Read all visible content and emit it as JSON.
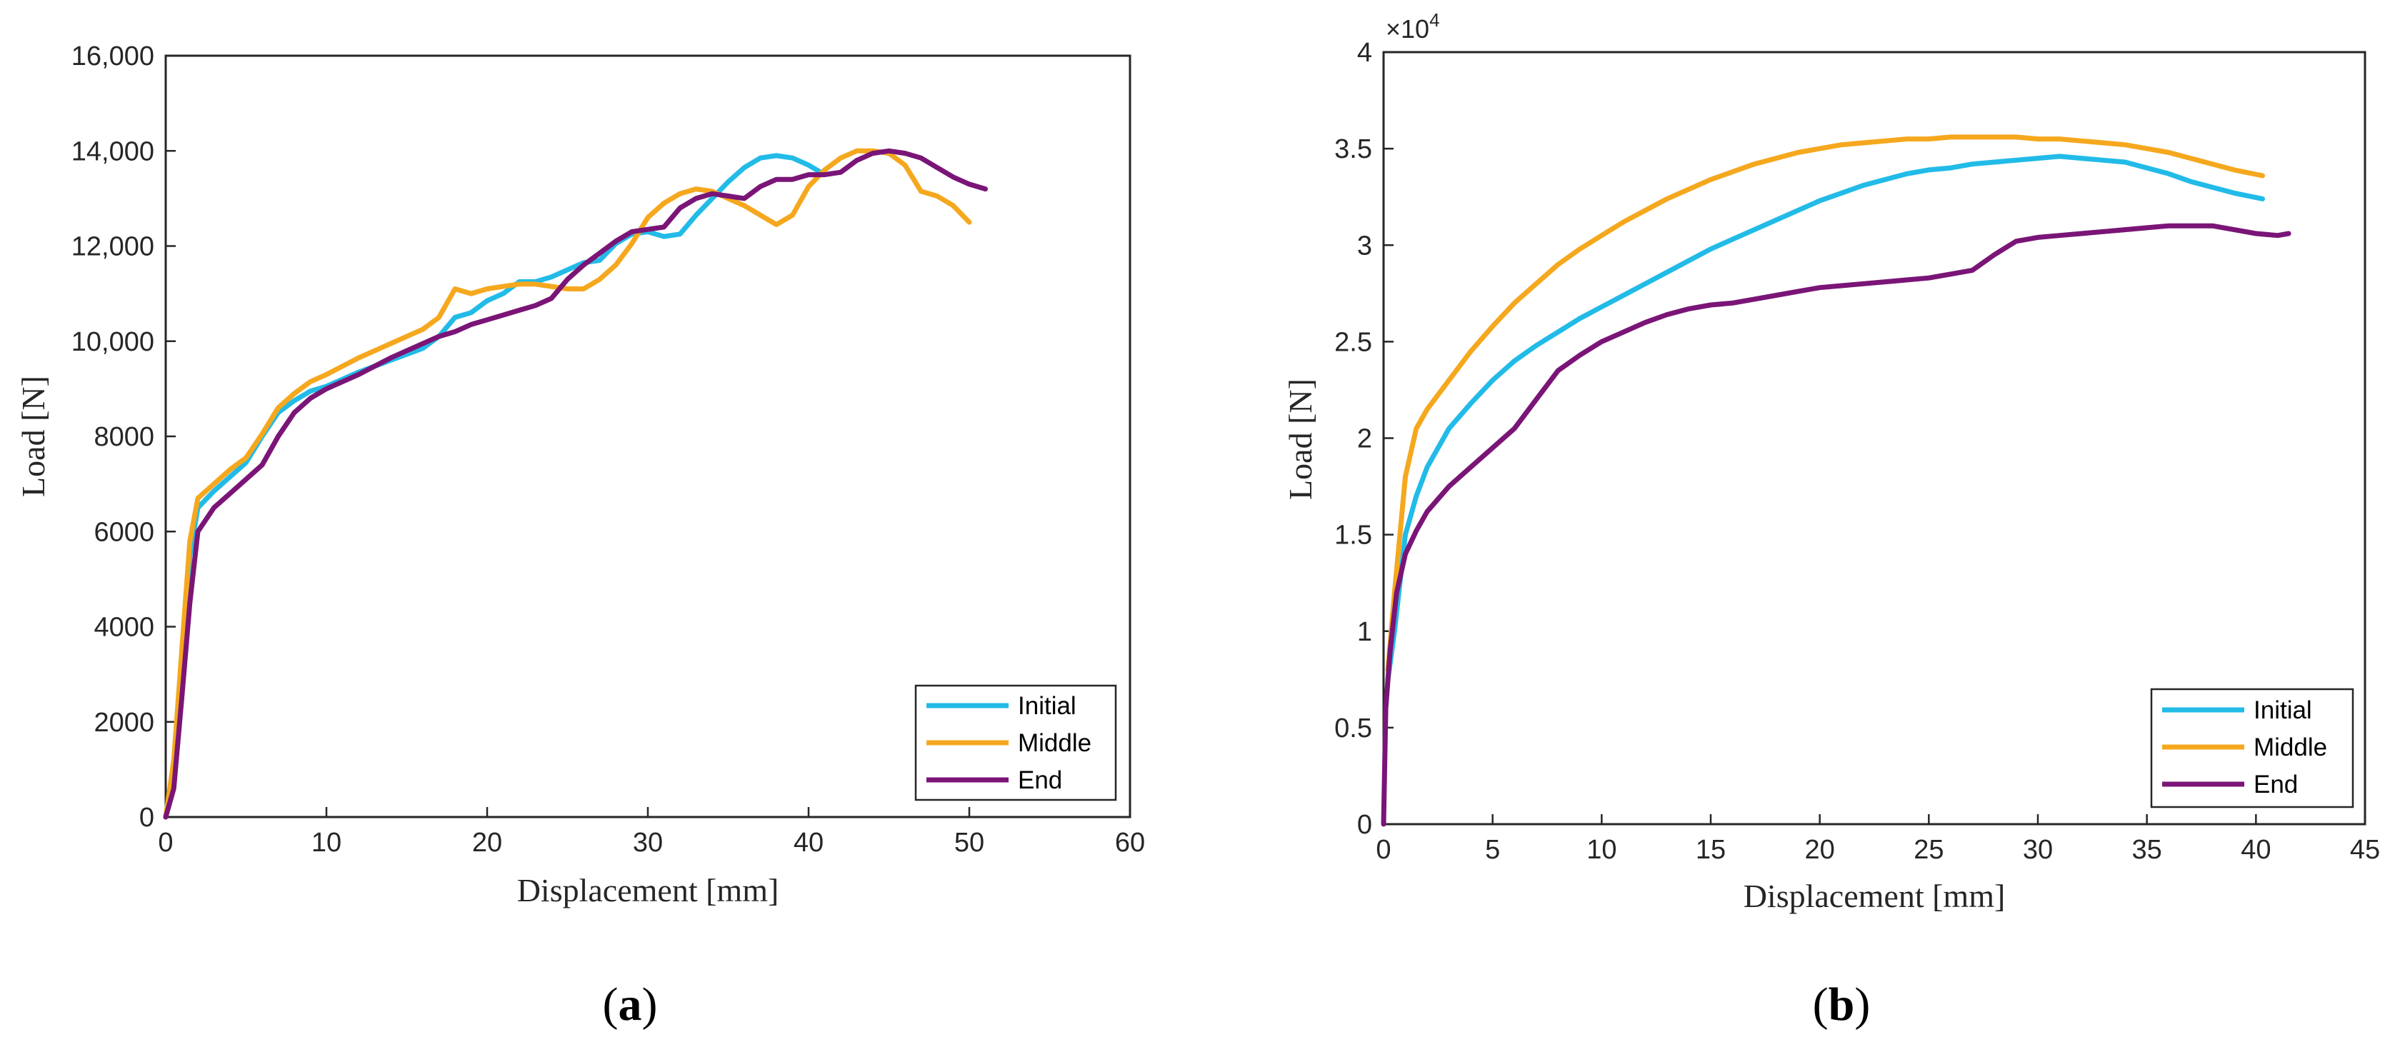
{
  "colors": {
    "initial": "#22bbe8",
    "middle": "#f5a81e",
    "end": "#7a1577",
    "axis": "#262626"
  },
  "chart_data": [
    {
      "type": "line",
      "panel_label": "a",
      "caption": {
        "open": "(",
        "letter": "a",
        "close": ")"
      },
      "title": "",
      "xlabel": "Displacement [mm]",
      "ylabel": "Load [N]",
      "xlim": [
        0,
        60
      ],
      "ylim": [
        0,
        16000
      ],
      "xticks": [
        0,
        10,
        20,
        30,
        40,
        50,
        60
      ],
      "yticks": [
        0,
        2000,
        4000,
        6000,
        8000,
        10000,
        12000,
        14000,
        16000
      ],
      "ytick_labels": [
        "0",
        "2000",
        "4000",
        "6000",
        "8000",
        "10,000",
        "12,000",
        "14,000",
        "16,000"
      ],
      "grid": false,
      "legend": "bottom-right",
      "series": [
        {
          "name": "Initial",
          "color_key": "initial",
          "x": [
            0,
            0.5,
            1.0,
            1.5,
            2.0,
            3,
            4,
            5,
            6,
            7,
            8,
            9,
            10,
            12,
            14,
            16,
            17,
            18,
            19,
            20,
            21,
            22,
            23,
            24,
            25,
            26,
            27,
            28,
            29,
            30,
            31,
            32,
            33,
            34,
            35,
            36,
            37,
            38,
            39,
            40,
            41
          ],
          "y": [
            0,
            1000,
            3200,
            5500,
            6500,
            6850,
            7150,
            7450,
            8000,
            8500,
            8750,
            8950,
            9050,
            9350,
            9600,
            9850,
            10100,
            10500,
            10600,
            10850,
            11000,
            11250,
            11250,
            11350,
            11500,
            11650,
            11700,
            12050,
            12250,
            12300,
            12200,
            12250,
            12650,
            13000,
            13350,
            13650,
            13850,
            13900,
            13850,
            13700,
            13500
          ]
        },
        {
          "name": "Middle",
          "color_key": "middle",
          "x": [
            0,
            0.5,
            1.0,
            1.5,
            2.0,
            3,
            4,
            5,
            6,
            7,
            8,
            9,
            10,
            12,
            14,
            16,
            17,
            18,
            19,
            20,
            21,
            22,
            23,
            24,
            25,
            26,
            27,
            28,
            29,
            30,
            31,
            32,
            33,
            34,
            35,
            36,
            37,
            38,
            39,
            40,
            41,
            42,
            43,
            44,
            45,
            46,
            47,
            48,
            49,
            50
          ],
          "y": [
            0,
            1200,
            3500,
            5800,
            6700,
            7000,
            7300,
            7550,
            8050,
            8600,
            8900,
            9150,
            9300,
            9650,
            9950,
            10250,
            10500,
            11100,
            11000,
            11100,
            11150,
            11200,
            11200,
            11150,
            11100,
            11100,
            11300,
            11600,
            12050,
            12600,
            12900,
            13100,
            13200,
            13150,
            13000,
            12850,
            12650,
            12450,
            12650,
            13250,
            13600,
            13850,
            14000,
            14000,
            13950,
            13700,
            13150,
            13050,
            12850,
            12500
          ]
        },
        {
          "name": "End",
          "color_key": "end",
          "x": [
            0,
            0.5,
            1.0,
            1.5,
            2.0,
            3,
            4,
            5,
            6,
            7,
            8,
            9,
            10,
            12,
            14,
            16,
            17,
            18,
            19,
            20,
            21,
            22,
            23,
            24,
            25,
            26,
            27,
            28,
            29,
            30,
            31,
            32,
            33,
            34,
            35,
            36,
            37,
            38,
            39,
            40,
            41,
            42,
            43,
            44,
            45,
            46,
            47,
            48,
            49,
            50,
            51
          ],
          "y": [
            0,
            600,
            2500,
            4500,
            6000,
            6500,
            6800,
            7100,
            7400,
            8000,
            8500,
            8800,
            9000,
            9300,
            9650,
            9950,
            10100,
            10200,
            10350,
            10450,
            10550,
            10650,
            10750,
            10900,
            11300,
            11600,
            11850,
            12100,
            12300,
            12350,
            12400,
            12800,
            13000,
            13100,
            13050,
            13000,
            13250,
            13400,
            13400,
            13500,
            13500,
            13550,
            13800,
            13950,
            14000,
            13950,
            13850,
            13650,
            13450,
            13300,
            13200
          ]
        }
      ]
    },
    {
      "type": "line",
      "panel_label": "b",
      "caption": {
        "open": "(",
        "letter": "b",
        "close": ")"
      },
      "title": "",
      "xlabel": "Displacement [mm]",
      "ylabel": "Load [N]",
      "xlim": [
        0,
        45
      ],
      "ylim": [
        0,
        4
      ],
      "y_multiplier": {
        "base": "×10",
        "exponent": "4"
      },
      "xticks": [
        0,
        5,
        10,
        15,
        20,
        25,
        30,
        35,
        40,
        45
      ],
      "yticks": [
        0,
        0.5,
        1,
        1.5,
        2,
        2.5,
        3,
        3.5,
        4
      ],
      "ytick_labels": [
        "0",
        "0.5",
        "1",
        "1.5",
        "2",
        "2.5",
        "3",
        "3.5",
        "4"
      ],
      "grid": false,
      "legend": "bottom-right",
      "series": [
        {
          "name": "Initial",
          "color_key": "initial",
          "x": [
            0.2,
            0.5,
            1,
            1.5,
            2,
            3,
            4,
            5,
            6,
            7,
            8,
            9,
            10,
            11,
            12,
            13,
            14,
            15,
            16,
            17,
            18,
            19,
            20,
            21,
            22,
            23,
            24,
            25,
            26,
            27,
            28,
            29,
            30,
            31,
            32,
            33,
            34,
            35,
            36,
            37,
            38,
            39,
            40.3
          ],
          "y": [
            0.75,
            1.0,
            1.5,
            1.7,
            1.85,
            2.05,
            2.18,
            2.3,
            2.4,
            2.48,
            2.55,
            2.62,
            2.68,
            2.74,
            2.8,
            2.86,
            2.92,
            2.98,
            3.03,
            3.08,
            3.13,
            3.18,
            3.23,
            3.27,
            3.31,
            3.34,
            3.37,
            3.39,
            3.4,
            3.42,
            3.43,
            3.44,
            3.45,
            3.46,
            3.45,
            3.44,
            3.43,
            3.4,
            3.37,
            3.33,
            3.3,
            3.27,
            3.24
          ]
        },
        {
          "name": "Middle",
          "color_key": "middle",
          "x": [
            0.2,
            0.5,
            1,
            1.5,
            2,
            3,
            4,
            5,
            6,
            7,
            8,
            9,
            10,
            11,
            12,
            13,
            14,
            15,
            16,
            17,
            18,
            19,
            20,
            21,
            22,
            23,
            24,
            25,
            26,
            27,
            28,
            29,
            30,
            31,
            32,
            33,
            34,
            35,
            36,
            37,
            38,
            39,
            40.3
          ],
          "y": [
            0.8,
            1.2,
            1.8,
            2.05,
            2.15,
            2.3,
            2.45,
            2.58,
            2.7,
            2.8,
            2.9,
            2.98,
            3.05,
            3.12,
            3.18,
            3.24,
            3.29,
            3.34,
            3.38,
            3.42,
            3.45,
            3.48,
            3.5,
            3.52,
            3.53,
            3.54,
            3.55,
            3.55,
            3.56,
            3.56,
            3.56,
            3.56,
            3.55,
            3.55,
            3.54,
            3.53,
            3.52,
            3.5,
            3.48,
            3.45,
            3.42,
            3.39,
            3.36
          ]
        },
        {
          "name": "End",
          "color_key": "end",
          "x": [
            0,
            0.1,
            0.3,
            0.6,
            1,
            1.5,
            2,
            3,
            4,
            5,
            6,
            7,
            8,
            9,
            10,
            11,
            12,
            13,
            14,
            15,
            16,
            17,
            18,
            19,
            20,
            21,
            22,
            23,
            24,
            25,
            26,
            27,
            28,
            29,
            30,
            31,
            32,
            33,
            34,
            35,
            36,
            37,
            38,
            39,
            40,
            41,
            41.5
          ],
          "y": [
            0,
            0.6,
            0.9,
            1.2,
            1.4,
            1.52,
            1.62,
            1.75,
            1.85,
            1.95,
            2.05,
            2.2,
            2.35,
            2.43,
            2.5,
            2.55,
            2.6,
            2.64,
            2.67,
            2.69,
            2.7,
            2.72,
            2.74,
            2.76,
            2.78,
            2.79,
            2.8,
            2.81,
            2.82,
            2.83,
            2.85,
            2.87,
            2.95,
            3.02,
            3.04,
            3.05,
            3.06,
            3.07,
            3.08,
            3.09,
            3.1,
            3.1,
            3.1,
            3.08,
            3.06,
            3.05,
            3.06
          ]
        }
      ]
    }
  ]
}
